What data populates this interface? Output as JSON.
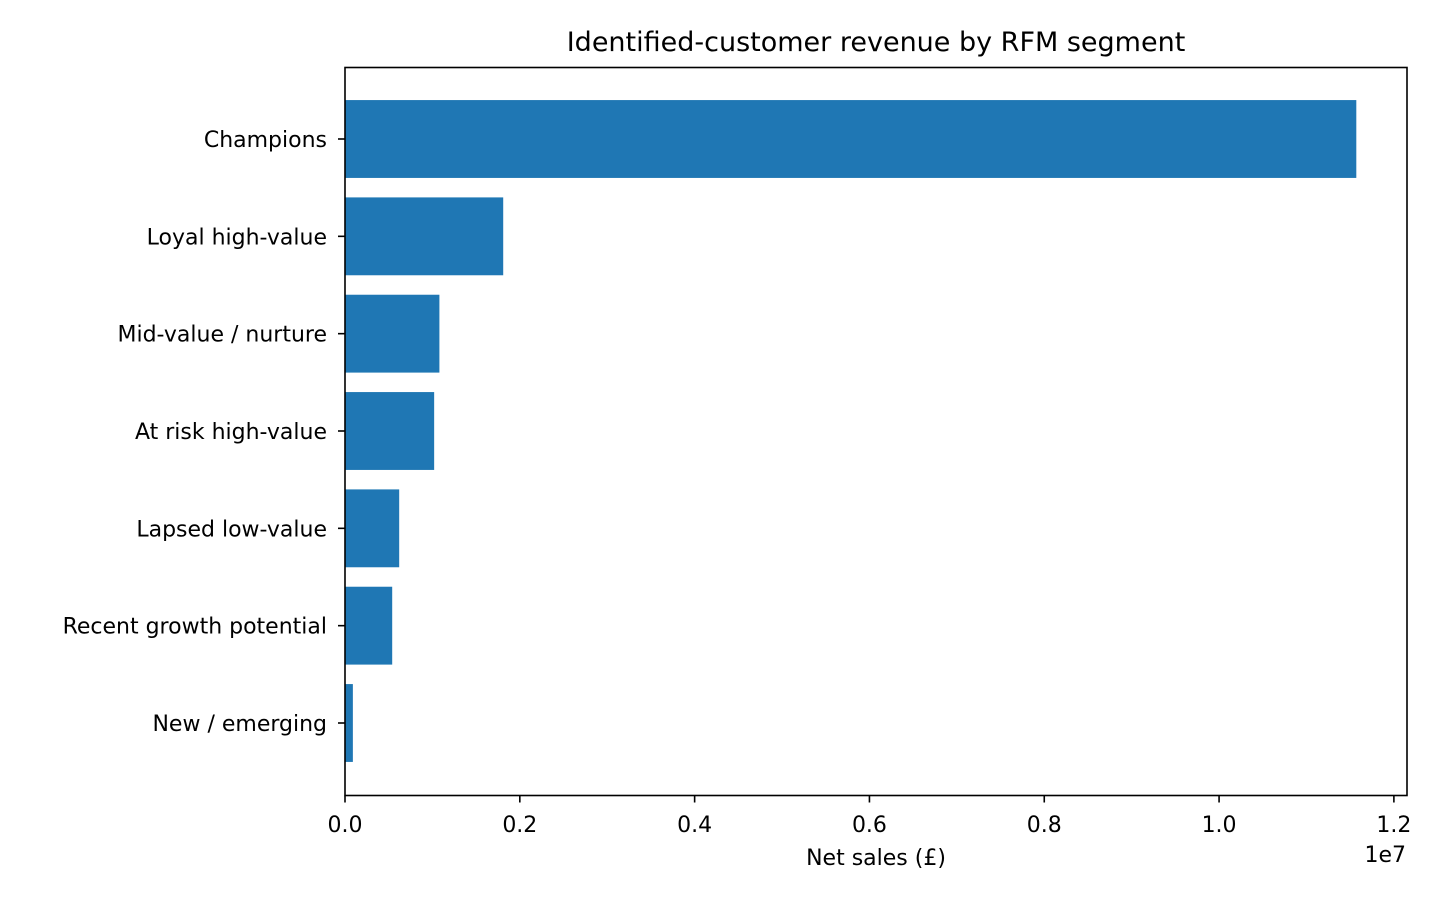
{
  "chart_data": {
    "type": "bar",
    "orientation": "horizontal",
    "title": "Identified-customer revenue by RFM segment",
    "xlabel": "Net sales (£)",
    "ylabel": "",
    "x_offset_label": "1e7",
    "xlim": [
      0,
      12150000
    ],
    "x_ticks": [
      0,
      2000000,
      4000000,
      6000000,
      8000000,
      10000000,
      12000000
    ],
    "x_tick_labels": [
      "0.0",
      "0.2",
      "0.4",
      "0.6",
      "0.8",
      "1.0",
      "1.2"
    ],
    "categories": [
      "Champions",
      "Loyal high-value",
      "Mid-value / nurture",
      "At risk high-value",
      "Lapsed low-value",
      "Recent growth potential",
      "New / emerging"
    ],
    "values": [
      11570000,
      1810000,
      1080000,
      1020000,
      620000,
      540000,
      90000
    ],
    "bar_color": "#1f77b4",
    "grid": false,
    "legend": "none"
  }
}
